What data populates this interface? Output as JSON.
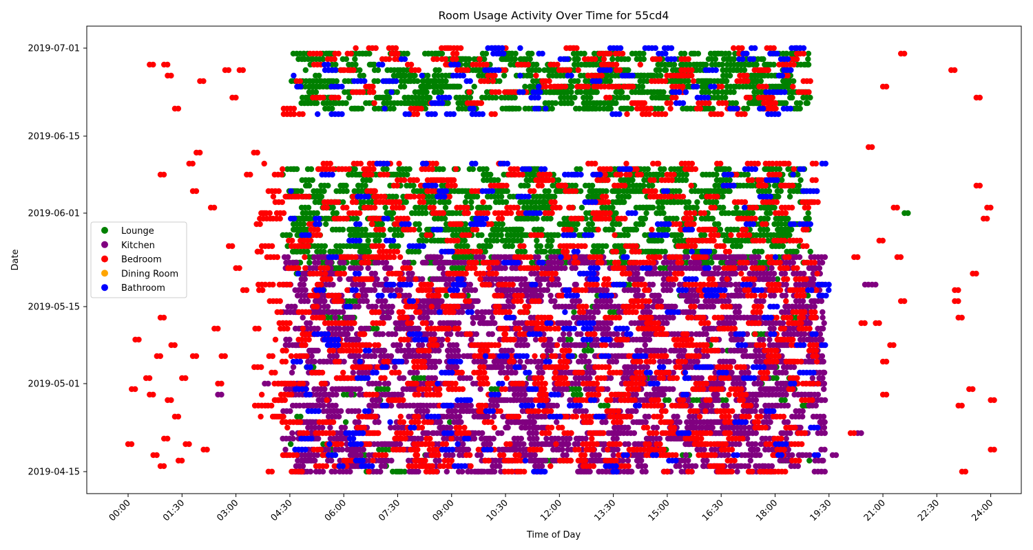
{
  "chart_data": {
    "type": "scatter",
    "title": "Room Usage Activity Over Time for 55cd4",
    "xlabel": "Time of Day",
    "ylabel": "Date",
    "x_unit": "hours",
    "xlim": [
      -1.15,
      24.85
    ],
    "x_ticks": [
      {
        "value": 0,
        "label": "00:00"
      },
      {
        "value": 1.5,
        "label": "01:30"
      },
      {
        "value": 3,
        "label": "03:00"
      },
      {
        "value": 4.5,
        "label": "04:30"
      },
      {
        "value": 6,
        "label": "06:00"
      },
      {
        "value": 7.5,
        "label": "07:30"
      },
      {
        "value": 9,
        "label": "09:00"
      },
      {
        "value": 10.5,
        "label": "10:30"
      },
      {
        "value": 12,
        "label": "12:00"
      },
      {
        "value": 13.5,
        "label": "13:30"
      },
      {
        "value": 15,
        "label": "15:00"
      },
      {
        "value": 16.5,
        "label": "16:30"
      },
      {
        "value": 18,
        "label": "18:00"
      },
      {
        "value": 19.5,
        "label": "19:30"
      },
      {
        "value": 21,
        "label": "21:00"
      },
      {
        "value": 22.5,
        "label": "22:30"
      },
      {
        "value": 24,
        "label": "24:00"
      }
    ],
    "ylim": [
      "2019-04-11",
      "2019-07-05"
    ],
    "y_ticks": [
      "2019-04-15",
      "2019-05-01",
      "2019-05-15",
      "2019-06-01",
      "2019-06-15",
      "2019-07-01"
    ],
    "grid": false,
    "legend": {
      "position": "center-left"
    },
    "series": [
      {
        "name": "Lounge",
        "color": "#008000",
        "density": [
          {
            "from": "2019-05-23",
            "to": "2019-06-09",
            "x_from": 4.3,
            "x_to": 19.0,
            "n": 650
          },
          {
            "from": "2019-06-20",
            "to": "2019-06-30",
            "x_from": 4.5,
            "x_to": 19.0,
            "n": 460
          },
          {
            "from": "2019-04-15",
            "to": "2019-05-23",
            "x_from": 4.5,
            "x_to": 19.0,
            "n": 120
          }
        ],
        "points": [
          {
            "x": 4.6,
            "y": "2019-06-09"
          },
          {
            "x": 5.0,
            "y": "2019-06-09"
          },
          {
            "x": 7.1,
            "y": "2019-06-09"
          },
          {
            "x": 9.5,
            "y": "2019-06-09"
          },
          {
            "x": 15.5,
            "y": "2019-06-03"
          },
          {
            "x": 21.6,
            "y": "2019-06-01"
          },
          {
            "x": 18.6,
            "y": "2019-07-01"
          },
          {
            "x": 7.3,
            "y": "2019-06-30"
          },
          {
            "x": 16.8,
            "y": "2019-06-20"
          },
          {
            "x": 11.7,
            "y": "2019-06-20"
          },
          {
            "x": 12.5,
            "y": "2019-06-23"
          },
          {
            "x": 15.1,
            "y": "2019-06-28"
          },
          {
            "x": 8.3,
            "y": "2019-04-15"
          },
          {
            "x": 18.3,
            "y": "2019-05-01"
          },
          {
            "x": 18.9,
            "y": "2019-05-15"
          }
        ]
      },
      {
        "name": "Kitchen",
        "color": "#800080",
        "density": [
          {
            "from": "2019-04-15",
            "to": "2019-05-24",
            "x_from": 4.3,
            "x_to": 19.4,
            "n": 1500
          }
        ],
        "points": [
          {
            "x": 2.5,
            "y": "2019-04-29"
          },
          {
            "x": 3.8,
            "y": "2019-05-01"
          },
          {
            "x": 20.3,
            "y": "2019-04-22"
          },
          {
            "x": 20.5,
            "y": "2019-05-19"
          },
          {
            "x": 20.7,
            "y": "2019-05-19"
          },
          {
            "x": 19.6,
            "y": "2019-04-18"
          },
          {
            "x": 19.0,
            "y": "2019-05-24"
          }
        ]
      },
      {
        "name": "Bedroom",
        "color": "#ff0000",
        "density": [
          {
            "from": "2019-04-15",
            "to": "2019-06-10",
            "x_from": 3.5,
            "x_to": 19.2,
            "n": 900
          },
          {
            "from": "2019-06-19",
            "to": "2019-07-01",
            "x_from": 4.2,
            "x_to": 19.0,
            "n": 140
          }
        ],
        "points": [
          {
            "x": 0.0,
            "y": "2019-04-20"
          },
          {
            "x": 0.1,
            "y": "2019-04-30"
          },
          {
            "x": 0.2,
            "y": "2019-05-09"
          },
          {
            "x": 0.5,
            "y": "2019-05-02"
          },
          {
            "x": 0.6,
            "y": "2019-04-29"
          },
          {
            "x": 0.7,
            "y": "2019-04-18"
          },
          {
            "x": 0.8,
            "y": "2019-05-06"
          },
          {
            "x": 0.9,
            "y": "2019-04-16"
          },
          {
            "x": 1.0,
            "y": "2019-04-21"
          },
          {
            "x": 1.1,
            "y": "2019-04-28"
          },
          {
            "x": 1.2,
            "y": "2019-05-08"
          },
          {
            "x": 1.3,
            "y": "2019-04-25"
          },
          {
            "x": 1.4,
            "y": "2019-04-17"
          },
          {
            "x": 0.6,
            "y": "2019-06-28"
          },
          {
            "x": 0.9,
            "y": "2019-06-08"
          },
          {
            "x": 1.0,
            "y": "2019-06-28"
          },
          {
            "x": 1.1,
            "y": "2019-06-26"
          },
          {
            "x": 1.7,
            "y": "2019-06-10"
          },
          {
            "x": 1.8,
            "y": "2019-05-06"
          },
          {
            "x": 1.6,
            "y": "2019-04-20"
          },
          {
            "x": 2.0,
            "y": "2019-06-25"
          },
          {
            "x": 2.1,
            "y": "2019-04-19"
          },
          {
            "x": 2.3,
            "y": "2019-06-02"
          },
          {
            "x": 2.4,
            "y": "2019-05-11"
          },
          {
            "x": 2.5,
            "y": "2019-05-01"
          },
          {
            "x": 2.7,
            "y": "2019-06-27"
          },
          {
            "x": 2.9,
            "y": "2019-06-22"
          },
          {
            "x": 3.1,
            "y": "2019-06-27"
          },
          {
            "x": 3.3,
            "y": "2019-06-08"
          },
          {
            "x": 3.5,
            "y": "2019-06-12"
          },
          {
            "x": 1.3,
            "y": "2019-06-20"
          },
          {
            "x": 0.9,
            "y": "2019-05-13"
          },
          {
            "x": 1.5,
            "y": "2019-05-02"
          },
          {
            "x": 2.6,
            "y": "2019-05-06"
          },
          {
            "x": 3.2,
            "y": "2019-05-18"
          },
          {
            "x": 2.8,
            "y": "2019-05-26"
          },
          {
            "x": 3.6,
            "y": "2019-05-25"
          },
          {
            "x": 3.0,
            "y": "2019-05-22"
          },
          {
            "x": 1.8,
            "y": "2019-06-05"
          },
          {
            "x": 1.9,
            "y": "2019-06-12"
          },
          {
            "x": 20.6,
            "y": "2019-06-13"
          },
          {
            "x": 20.9,
            "y": "2019-05-27"
          },
          {
            "x": 20.8,
            "y": "2019-05-12"
          },
          {
            "x": 21.0,
            "y": "2019-05-05"
          },
          {
            "x": 21.0,
            "y": "2019-06-24"
          },
          {
            "x": 21.3,
            "y": "2019-06-02"
          },
          {
            "x": 21.5,
            "y": "2019-06-30"
          },
          {
            "x": 21.5,
            "y": "2019-05-16"
          },
          {
            "x": 21.4,
            "y": "2019-05-24"
          },
          {
            "x": 21.2,
            "y": "2019-05-08"
          },
          {
            "x": 21.0,
            "y": "2019-04-29"
          },
          {
            "x": 20.2,
            "y": "2019-05-24"
          },
          {
            "x": 20.4,
            "y": "2019-05-12"
          },
          {
            "x": 20.1,
            "y": "2019-04-22"
          },
          {
            "x": 22.9,
            "y": "2019-06-27"
          },
          {
            "x": 23.0,
            "y": "2019-05-18"
          },
          {
            "x": 23.1,
            "y": "2019-05-13"
          },
          {
            "x": 23.2,
            "y": "2019-04-15"
          },
          {
            "x": 23.1,
            "y": "2019-04-27"
          },
          {
            "x": 23.4,
            "y": "2019-04-30"
          },
          {
            "x": 23.5,
            "y": "2019-05-21"
          },
          {
            "x": 23.6,
            "y": "2019-06-22"
          },
          {
            "x": 23.8,
            "y": "2019-05-31"
          },
          {
            "x": 23.9,
            "y": "2019-06-02"
          },
          {
            "x": 24.0,
            "y": "2019-04-28"
          },
          {
            "x": 24.0,
            "y": "2019-04-19"
          },
          {
            "x": 23.6,
            "y": "2019-06-06"
          },
          {
            "x": 23.0,
            "y": "2019-05-16"
          }
        ]
      },
      {
        "name": "Dining Room",
        "color": "#ffa500",
        "density": [],
        "points": []
      },
      {
        "name": "Bathroom",
        "color": "#0000ff",
        "density": [
          {
            "from": "2019-04-15",
            "to": "2019-06-10",
            "x_from": 4.5,
            "x_to": 19.5,
            "n": 220
          },
          {
            "from": "2019-06-19",
            "to": "2019-07-01",
            "x_from": 4.5,
            "x_to": 18.8,
            "n": 70
          }
        ],
        "points": [
          {
            "x": 18.6,
            "y": "2019-07-01"
          },
          {
            "x": 18.7,
            "y": "2019-07-01"
          },
          {
            "x": 17.0,
            "y": "2019-06-29"
          },
          {
            "x": 17.3,
            "y": "2019-06-29"
          },
          {
            "x": 19.2,
            "y": "2019-05-19"
          },
          {
            "x": 19.4,
            "y": "2019-05-19"
          },
          {
            "x": 19.3,
            "y": "2019-05-08"
          },
          {
            "x": 19.1,
            "y": "2019-04-18"
          },
          {
            "x": 11.5,
            "y": "2019-04-15"
          },
          {
            "x": 13.5,
            "y": "2019-04-15"
          },
          {
            "x": 8.2,
            "y": "2019-06-10"
          }
        ]
      }
    ]
  }
}
